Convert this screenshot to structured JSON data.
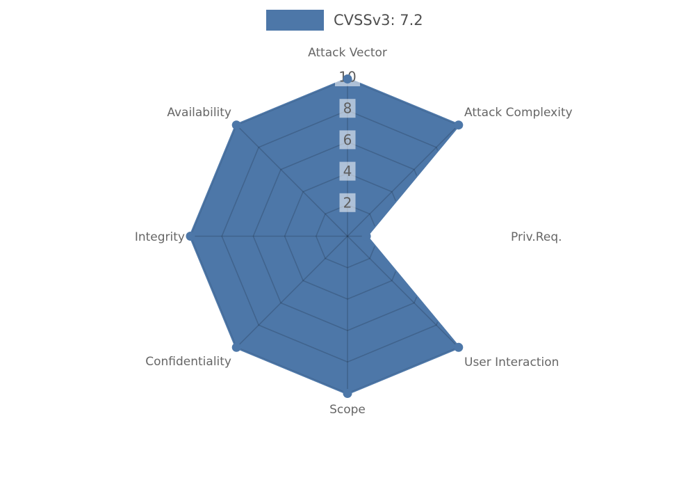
{
  "legend": {
    "label": "CVSSv3: 7.2"
  },
  "chart_data": {
    "type": "radar",
    "title": "CVSSv3: 7.2",
    "categories": [
      "Attack Vector",
      "Attack Complexity",
      "Priv.Req.",
      "User Interaction",
      "Scope",
      "Confidentiality",
      "Integrity",
      "Availability"
    ],
    "series": [
      {
        "name": "CVSSv3: 7.2",
        "values": [
          10,
          10,
          1.2,
          10,
          10,
          10,
          10,
          10
        ]
      }
    ],
    "radial_ticks": [
      2,
      4,
      6,
      8,
      10
    ],
    "max": 10,
    "grid": "rings-and-spokes-visible-only-inside-fill",
    "legend_position": "top-center"
  },
  "colors": {
    "fill": "#4d77a8",
    "axis_label": "#666666",
    "tick_text": "#5d5d5d",
    "legend_text": "#4f4f4f",
    "grid_line": "rgba(0,0,0,0.16)",
    "tick_box": "rgba(255,255,255,0.55)"
  }
}
